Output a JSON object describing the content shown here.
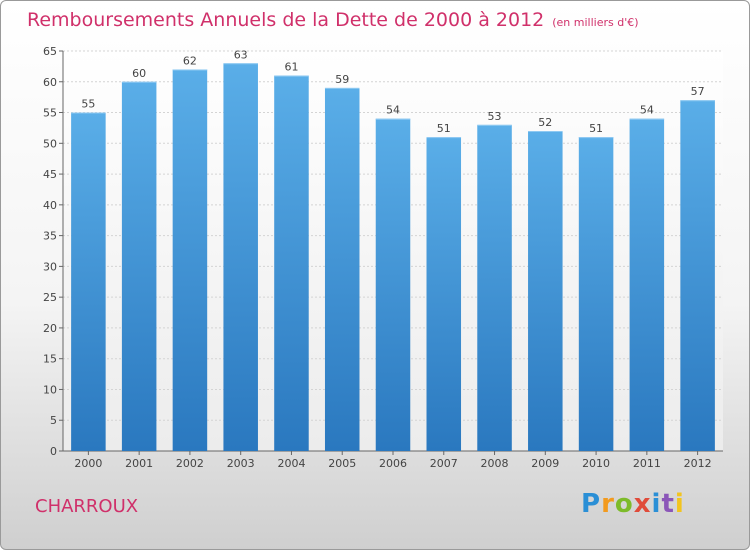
{
  "chart_data": {
    "type": "bar",
    "title": "Remboursements Annuels de la Dette de 2000 à 2012",
    "subtitle": "(en milliers d'€)",
    "categories": [
      "2000",
      "2001",
      "2002",
      "2003",
      "2004",
      "2005",
      "2006",
      "2007",
      "2008",
      "2009",
      "2010",
      "2011",
      "2012"
    ],
    "values": [
      55,
      60,
      62,
      63,
      61,
      59,
      54,
      51,
      53,
      52,
      51,
      54,
      57
    ],
    "ylim": [
      0,
      65
    ],
    "yticks": [
      0,
      5,
      10,
      15,
      20,
      25,
      30,
      35,
      40,
      45,
      50,
      55,
      60,
      65
    ],
    "grid": true,
    "colors": {
      "bar_top": "#5aaee8",
      "bar_bottom": "#2a78bf",
      "title": "#d0306a"
    }
  },
  "commune": "CHARROUX",
  "logo": {
    "letters": [
      "P",
      "r",
      "o",
      "x",
      "i",
      "t",
      "i"
    ]
  }
}
